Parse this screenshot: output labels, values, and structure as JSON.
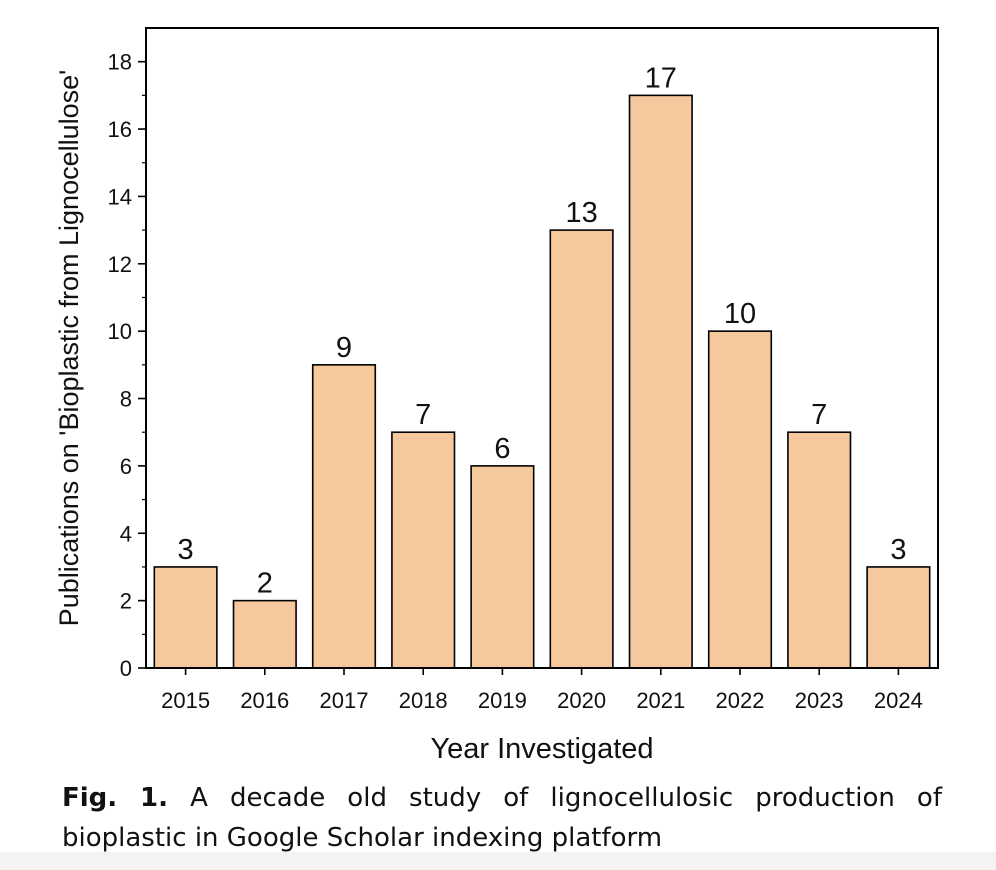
{
  "chart_data": {
    "type": "bar",
    "categories": [
      "2015",
      "2016",
      "2017",
      "2018",
      "2019",
      "2020",
      "2021",
      "2022",
      "2023",
      "2024"
    ],
    "values": [
      3,
      2,
      9,
      7,
      6,
      13,
      17,
      10,
      7,
      3
    ],
    "data_labels": [
      "3",
      "2",
      "9",
      "7",
      "6",
      "13",
      "17",
      "10",
      "7",
      "3"
    ],
    "xlabel": "Year Investigated",
    "ylabel": "Publications on 'Bioplastic from Lignocellulose'",
    "ylim": [
      0,
      19
    ],
    "yticks": [
      0,
      2,
      4,
      6,
      8,
      10,
      12,
      14,
      16,
      18
    ],
    "ytick_labels": [
      "0",
      "2",
      "4",
      "6",
      "8",
      "10",
      "12",
      "14",
      "16",
      "18"
    ],
    "bar_color": "#f5c89d",
    "bar_edge_color": "#000000",
    "grid": false,
    "legend": "none"
  },
  "caption": {
    "label": "Fig. 1.",
    "text": "A decade old study of lignocellulosic production of bioplastic in Google Scholar indexing platform"
  }
}
